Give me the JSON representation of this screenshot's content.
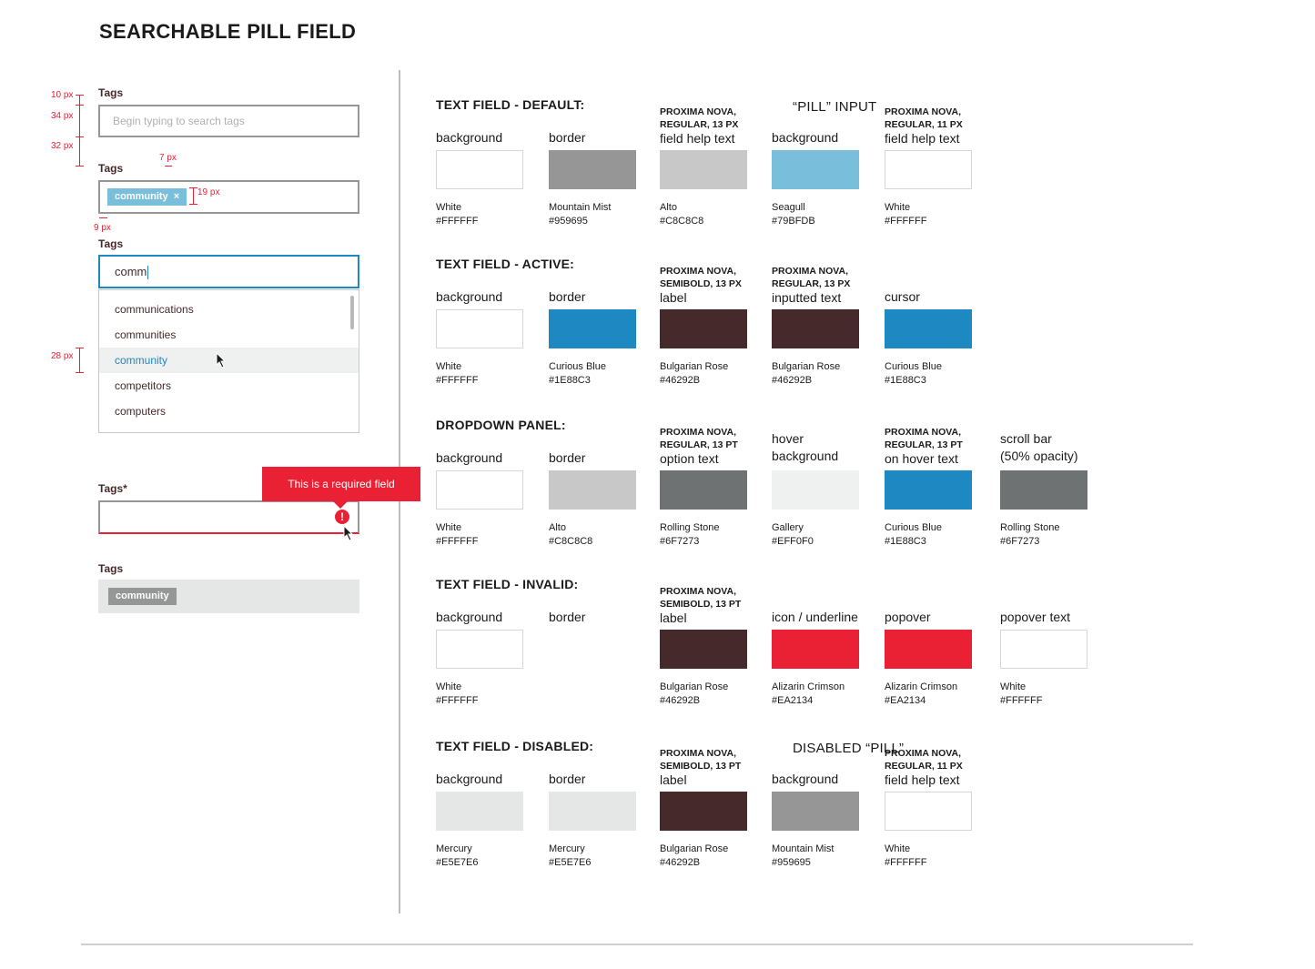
{
  "title": "SEARCHABLE PILL FIELD",
  "left": {
    "field1": {
      "label": "Tags",
      "placeholder": "Begin typing to search tags"
    },
    "field2": {
      "label": "Tags",
      "pill": "community",
      "pill_close": "×"
    },
    "field3": {
      "label": "Tags",
      "typed": "comm",
      "options": [
        "communications",
        "communities",
        "community",
        "competitors",
        "computers"
      ],
      "hovered_index": 2
    },
    "field4": {
      "label": "Tags*",
      "popover": "This is a required field",
      "error_glyph": "!"
    },
    "field5": {
      "label": "Tags",
      "pill": "community"
    },
    "measurements": {
      "m10": "10 px",
      "m34": "34 px",
      "m32": "32 px",
      "m7": "7 px",
      "m19": "19 px",
      "m9": "9 px",
      "m28": "28 px"
    }
  },
  "sections": [
    {
      "title": "TEXT FIELD - DEFAULT:",
      "swatches": [
        {
          "top": "",
          "caption": "background",
          "name": "White",
          "hex": "#FFFFFF",
          "color": "#FFFFFF"
        },
        {
          "top": "",
          "caption": "border",
          "name": "Mountain Mist",
          "hex": "#959695",
          "color": "#959695"
        },
        {
          "top": "PROXIMA NOVA,\nREGULAR, 13 PX",
          "caption": "field help text",
          "name": "Alto",
          "hex": "#C8C8C8",
          "color": "#C8C8C8"
        },
        {
          "top": "",
          "caption": "background",
          "name": "Seagull",
          "hex": "#79BFDB",
          "color": "#79BFDB"
        },
        {
          "top": "PROXIMA NOVA,\nREGULAR, 11 PX",
          "caption": "field help text",
          "name": "White",
          "hex": "#FFFFFF",
          "color": "#FFFFFF"
        }
      ],
      "extra_heading": "“PILL” INPUT"
    },
    {
      "title": "TEXT FIELD - ACTIVE:",
      "swatches": [
        {
          "top": "",
          "caption": "background",
          "name": "White",
          "hex": "#FFFFFF",
          "color": "#FFFFFF"
        },
        {
          "top": "",
          "caption": "border",
          "name": "Curious Blue",
          "hex": "#1E88C3",
          "color": "#1E88C3"
        },
        {
          "top": "PROXIMA NOVA,\nSEMIBOLD, 13 PX",
          "caption": "label",
          "name": "Bulgarian Rose",
          "hex": "#46292B",
          "color": "#46292B"
        },
        {
          "top": "PROXIMA NOVA,\nREGULAR, 13 PX",
          "caption": "inputted text",
          "name": "Bulgarian Rose",
          "hex": "#46292B",
          "color": "#46292B"
        },
        {
          "top": "",
          "caption": "cursor",
          "name": "Curious Blue",
          "hex": "#1E88C3",
          "color": "#1E88C3"
        }
      ]
    },
    {
      "title": "DROPDOWN PANEL:",
      "swatches": [
        {
          "top": "",
          "caption": "background",
          "name": "White",
          "hex": "#FFFFFF",
          "color": "#FFFFFF"
        },
        {
          "top": "",
          "caption": "border",
          "name": "Alto",
          "hex": "#C8C8C8",
          "color": "#C8C8C8"
        },
        {
          "top": "PROXIMA NOVA,\nREGULAR, 13 PT",
          "caption": "option text",
          "name": "Rolling Stone",
          "hex": "#6F7273",
          "color": "#6F7273"
        },
        {
          "top": "",
          "caption": "hover\nbackground",
          "name": "Gallery",
          "hex": "#EFF0F0",
          "color": "#EFF0F0"
        },
        {
          "top": "PROXIMA NOVA,\nREGULAR, 13 PT",
          "caption": "on hover text",
          "name": "Curious Blue",
          "hex": "#1E88C3",
          "color": "#1E88C3"
        },
        {
          "top": "",
          "caption": "scroll bar\n(50% opacity)",
          "name": "Rolling Stone",
          "hex": "#6F7273",
          "color": "#6F7273"
        }
      ]
    },
    {
      "title": "TEXT FIELD - INVALID:",
      "swatches": [
        {
          "top": "",
          "caption": "background",
          "name": "White",
          "hex": "#FFFFFF",
          "color": "#FFFFFF"
        },
        {
          "top": "",
          "caption": "border",
          "name": "",
          "hex": "",
          "color": ""
        },
        {
          "top": "PROXIMA NOVA,\nSEMIBOLD, 13 PT",
          "caption": "label",
          "name": "Bulgarian Rose",
          "hex": "#46292B",
          "color": "#46292B"
        },
        {
          "top": "",
          "caption": "icon / underline",
          "name": "Alizarin Crimson",
          "hex": "#EA2134",
          "color": "#EA2134"
        },
        {
          "top": "",
          "caption": "popover",
          "name": "Alizarin Crimson",
          "hex": "#EA2134",
          "color": "#EA2134"
        },
        {
          "top": "",
          "caption": "popover text",
          "name": "White",
          "hex": "#FFFFFF",
          "color": "#FFFFFF"
        }
      ]
    },
    {
      "title": "TEXT FIELD - DISABLED:",
      "swatches": [
        {
          "top": "",
          "caption": "background",
          "name": "Mercury",
          "hex": "#E5E7E6",
          "color": "#E5E7E6"
        },
        {
          "top": "",
          "caption": "border",
          "name": "Mercury",
          "hex": "#E5E7E6",
          "color": "#E5E7E6"
        },
        {
          "top": "PROXIMA NOVA,\nSEMIBOLD, 13 PT",
          "caption": "label",
          "name": "Bulgarian Rose",
          "hex": "#46292B",
          "color": "#46292B"
        },
        {
          "top": "",
          "caption": "background",
          "name": "Mountain Mist",
          "hex": "#959695",
          "color": "#959695"
        },
        {
          "top": "PROXIMA NOVA,\nREGULAR, 11 PX",
          "caption": "field help text",
          "name": "White",
          "hex": "#FFFFFF",
          "color": "#FFFFFF"
        }
      ],
      "extra_heading": "DISABLED “PILL”"
    }
  ]
}
